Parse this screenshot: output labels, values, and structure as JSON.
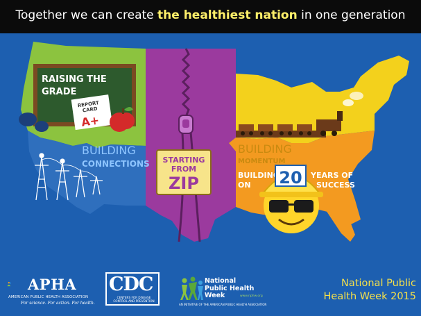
{
  "banner": {
    "part1": "Together we can create ",
    "highlight": "the healthiest nation",
    "part2": " in one generation"
  },
  "map": {
    "chalkboard_line1": "RAISING THE",
    "chalkboard_line2": "GRADE",
    "report_card_line1": "REPORT",
    "report_card_line2": "CARD",
    "grade": "A+",
    "building_connections_1": "BUILDING",
    "building_connections_2": "CONNECTIONS",
    "zip_line1": "STARTING",
    "zip_line2": "FROM",
    "zip_line3": "ZIP",
    "building_momentum_1": "BUILDING",
    "building_momentum_2": "MOMENTUM",
    "building_on_1": "BUILDING",
    "building_on_2": "ON",
    "years_number": "20",
    "years_1": "YEARS OF",
    "years_2": "SUCCESS"
  },
  "footer": {
    "apha_name": "APHA",
    "apha_full": "AMERICAN PUBLIC HEALTH ASSOCIATION",
    "apha_tagline": "For science. For action. For health.",
    "cdc_name": "CDC",
    "cdc_full_1": "CENTERS FOR DISEASE",
    "cdc_full_2": "CONTROL AND PREVENTION",
    "nphw_line1": "National",
    "nphw_line2": "Public Health",
    "nphw_line3": "Week",
    "nphw_url": "www.nphw.org",
    "nphw_sub": "AN INITIATIVE OF THE AMERICAN PUBLIC HEALTH ASSOCIATION",
    "week_line1": "National Public",
    "week_line2": "Health Week 2015"
  },
  "colors": {
    "background": "#1d5fb0",
    "banner": "#0b0b0b",
    "highlight": "#fff06a",
    "green_region": "#8cc33f",
    "blue_region": "#2f6fbd",
    "purple_region": "#9b3a9e",
    "yellow_region": "#f3d11c",
    "orange_region": "#f39a20",
    "chalkboard": "#2d5a2d"
  }
}
